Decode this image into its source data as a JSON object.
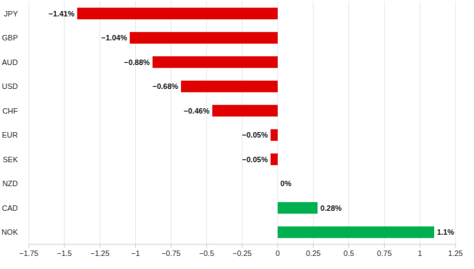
{
  "chart_data": {
    "type": "bar",
    "orientation": "horizontal",
    "categories": [
      "JPY",
      "GBP",
      "AUD",
      "USD",
      "CHF",
      "EUR",
      "SEK",
      "NZD",
      "CAD",
      "NOK"
    ],
    "values": [
      -1.41,
      -1.04,
      -0.88,
      -0.68,
      -0.46,
      -0.05,
      -0.05,
      0,
      0.28,
      1.1
    ],
    "value_labels": [
      "−1.41%",
      "−1.04%",
      "−0.88%",
      "−0.68%",
      "−0.46%",
      "−0.05%",
      "−0.05%",
      "0%",
      "0.28%",
      "1.1%"
    ],
    "colors": [
      "#e00000",
      "#e00000",
      "#e00000",
      "#e00000",
      "#e00000",
      "#e00000",
      "#e00000",
      "#e00000",
      "#00b050",
      "#00b050"
    ],
    "xlim": [
      -1.75,
      1.25
    ],
    "xticks": [
      {
        "value": -1.75,
        "label": "−1.75"
      },
      {
        "value": -1.5,
        "label": "−1.5"
      },
      {
        "value": -1.25,
        "label": "−1.25"
      },
      {
        "value": -1,
        "label": "−1"
      },
      {
        "value": -0.75,
        "label": "−0.75"
      },
      {
        "value": -0.5,
        "label": "−0.5"
      },
      {
        "value": -0.25,
        "label": "−0.25"
      },
      0,
      0.25,
      0.5,
      0.75,
      1,
      1.25
    ],
    "grid": true,
    "data_labels": true
  }
}
